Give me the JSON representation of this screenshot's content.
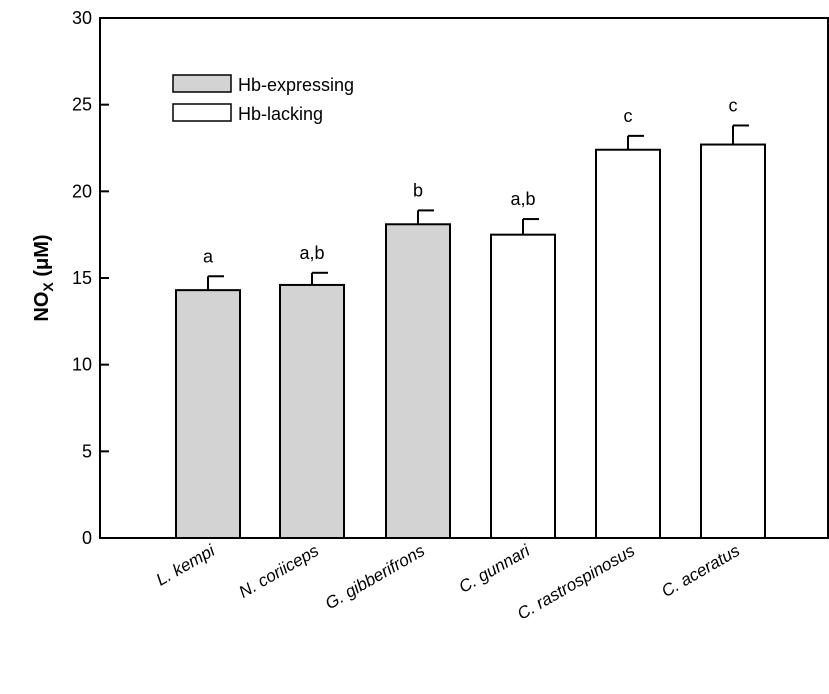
{
  "chart_data": {
    "type": "bar",
    "ylabel": "NO_X (μM)",
    "ylabel_main": "NO",
    "ylabel_sub": "X",
    "ylabel_unit": " (μM)",
    "ylim": [
      0,
      30
    ],
    "yticks": [
      "0",
      "5",
      "10",
      "15",
      "20",
      "25",
      "30"
    ],
    "categories": [
      "L. kempi",
      "N. coriiceps",
      "G. gibberifrons",
      "C. gunnari",
      "C. rastrospinosus",
      "C. aceratus"
    ],
    "values": [
      14.3,
      14.6,
      18.1,
      17.5,
      22.4,
      22.7
    ],
    "errors": [
      0.8,
      0.7,
      0.8,
      0.9,
      0.8,
      1.1
    ],
    "groups": [
      "Hb-expressing",
      "Hb-expressing",
      "Hb-expressing",
      "Hb-lacking",
      "Hb-lacking",
      "Hb-lacking"
    ],
    "significance": [
      "a",
      "a,b",
      "b",
      "a,b",
      "c",
      "c"
    ],
    "legend": [
      {
        "label": "Hb-expressing",
        "color": "#d3d3d3"
      },
      {
        "label": "Hb-lacking",
        "color": "#ffffff"
      }
    ]
  }
}
